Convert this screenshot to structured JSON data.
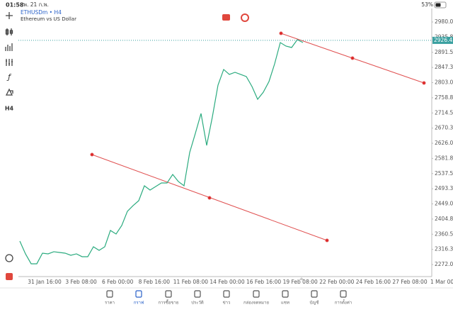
{
  "status_bar": {
    "time": "01:58",
    "date": "พ. 21 ก.พ.",
    "battery": "53%"
  },
  "chart_data": {
    "type": "line",
    "title": "ETHUSDm • H4",
    "subtitle": "Ethereum vs US Dollar",
    "color": "#2bab7f",
    "values": [
      2340.4,
      2303.2,
      2274.2,
      2274.2,
      2305.2,
      2303.2,
      2309.4,
      2307.3,
      2305.2,
      2299.0,
      2303.2,
      2294.9,
      2294.9,
      2323.9,
      2313.5,
      2323.9,
      2371.5,
      2361.1,
      2386.0,
      2427.4,
      2444.0,
      2458.4,
      2501.9,
      2489.5,
      2499.8,
      2510.2,
      2510.2,
      2535.0,
      2514.3,
      2501.9,
      2599.2,
      2655.0,
      2713.0,
      2619.9,
      2702.7,
      2795.8,
      2841.4,
      2826.9,
      2833.1,
      2826.9,
      2820.7,
      2791.7,
      2754.4,
      2775.1,
      2806.2,
      2857.9,
      2920.0,
      2909.7,
      2905.5,
      2928.3,
      2920.0
    ],
    "ylim": [
      2241.0,
      3019.4
    ],
    "yticks": [
      2980.05,
      2935.8,
      2891.55,
      2847.3,
      2803.05,
      2758.8,
      2714.55,
      2670.3,
      2626.05,
      2581.8,
      2537.55,
      2493.3,
      2449.05,
      2404.8,
      2360.55,
      2316.3,
      2272.05
    ],
    "x_tick_labels": [
      "31 Jan 16:00",
      "3 Feb 08:00",
      "6 Feb 00:00",
      "8 Feb 16:00",
      "11 Feb 08:00",
      "14 Feb 00:00",
      "16 Feb 16:00",
      "19 Feb 08:00",
      "22 Feb 00:00",
      "24 Feb 16:00",
      "27 Feb 08:00",
      "1 Mar 00:00"
    ],
    "last_price": 2926.43,
    "timeframe": "H4"
  },
  "nav": [
    "ราคา",
    "กราฟ",
    "การซื้อขาย",
    "ประวัติ",
    "ข่าว",
    "กล่องจดหมาย",
    "แชท",
    "บัญชี",
    "การตั้งค่า"
  ]
}
